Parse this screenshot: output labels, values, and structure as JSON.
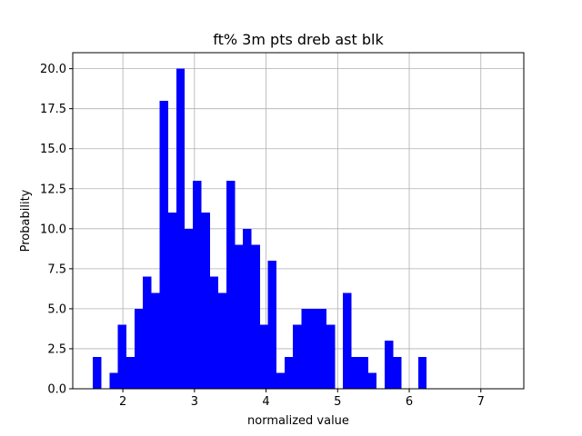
{
  "chart_data": {
    "type": "histogram",
    "title": "ft% 3m pts dreb ast blk",
    "xlabel": "normalized value",
    "ylabel": "Probability",
    "xlim": [
      1.3,
      7.6
    ],
    "ylim": [
      0,
      21
    ],
    "grid": true,
    "bar_color": "#0000ff",
    "x_ticks": [
      2,
      3,
      4,
      5,
      6,
      7
    ],
    "x_tick_labels": [
      "2",
      "3",
      "4",
      "5",
      "6",
      "7"
    ],
    "y_ticks": [
      0,
      2.5,
      5,
      7.5,
      10,
      12.5,
      15,
      17.5,
      20
    ],
    "y_tick_labels": [
      "0.0",
      "2.5",
      "5.0",
      "7.5",
      "10.0",
      "12.5",
      "15.0",
      "17.5",
      "20.0"
    ],
    "bin_start": 1.58,
    "bin_width": 0.1165,
    "counts": [
      2,
      0,
      1,
      4,
      2,
      5,
      7,
      6,
      18,
      11,
      20,
      10,
      13,
      11,
      7,
      6,
      13,
      9,
      10,
      9,
      4,
      8,
      1,
      2,
      4,
      5,
      5,
      5,
      4,
      0,
      6,
      2,
      2,
      1,
      0,
      3,
      2,
      0,
      0,
      2,
      0,
      0,
      0,
      0,
      0,
      0,
      0,
      0,
      0,
      0,
      0,
      0,
      0,
      0,
      0,
      0,
      0,
      0,
      0,
      0,
      0,
      0,
      0,
      0,
      0
    ]
  }
}
